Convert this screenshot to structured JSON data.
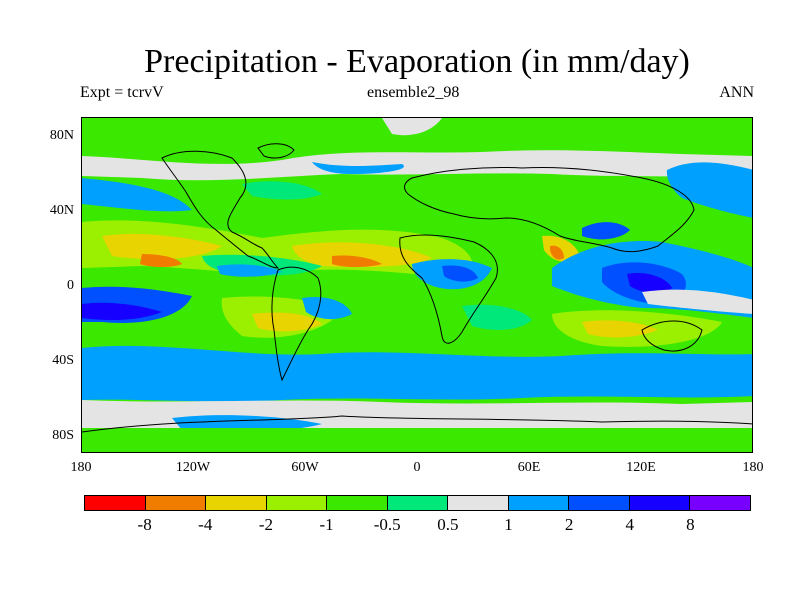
{
  "title": "Precipitation - Evaporation (in mm/day)",
  "subtitle_left": "Expt = tcrvV",
  "subtitle_center": "ensemble2_98",
  "subtitle_right": "ANN",
  "lat_labels": [
    "80N",
    "40N",
    "0",
    "40S",
    "80S"
  ],
  "lon_labels": [
    "180",
    "120W",
    "60W",
    "0",
    "60E",
    "120E",
    "180"
  ],
  "colorbar": {
    "colors": [
      "#ff0000",
      "#f07c00",
      "#e8d400",
      "#9af000",
      "#3be800",
      "#00e87a",
      "#e4e4e4",
      "#00a0ff",
      "#0050ff",
      "#1600ff",
      "#7800ff"
    ],
    "labels": [
      "-8",
      "-4",
      "-2",
      "-1",
      "-0.5",
      "0.5",
      "1",
      "2",
      "4",
      "8"
    ]
  }
}
